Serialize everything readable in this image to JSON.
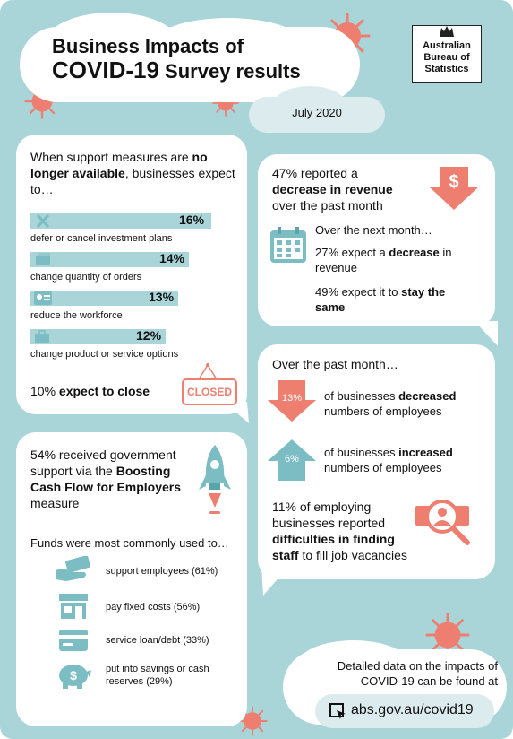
{
  "header": {
    "title_line1": "Business Impacts of",
    "title_line2_strong": "COVID-19",
    "title_line2_rest": "Survey results",
    "date": "July 2020",
    "logo_lines": [
      "Australian",
      "Bureau of",
      "Statistics"
    ]
  },
  "support_panel": {
    "intro_pre": "When support measures are ",
    "intro_bold": "no longer available",
    "intro_post": ", businesses expect to…",
    "items": [
      {
        "percent": "16%",
        "label": "defer or cancel investment plans",
        "value": 16
      },
      {
        "percent": "14%",
        "label": "change quantity of orders",
        "value": 14
      },
      {
        "percent": "13%",
        "label": "reduce the workforce",
        "value": 13
      },
      {
        "percent": "12%",
        "label": "change product or service options",
        "value": 12
      }
    ],
    "close_pre": "10% ",
    "close_bold": "expect to close",
    "closed_sign": "CLOSED"
  },
  "revenue_panel": {
    "line1": "47% reported a",
    "line2_bold": "decrease in revenue",
    "line3": "over the past month",
    "dollar": "$",
    "next_month": "Over the next month…",
    "expect_decrease_pre": "27% expect a ",
    "expect_decrease_bold": "decrease",
    "expect_decrease_post": " in revenue",
    "stay_pre": "49% expect it to ",
    "stay_bold": "stay the same"
  },
  "employees_panel": {
    "heading": "Over the past month…",
    "decreased_pct": "13%",
    "decreased_pre": "of businesses ",
    "decreased_bold": "decreased",
    "decreased_post": "numbers of employees",
    "increased_pct": "6%",
    "increased_pre": "of businesses ",
    "increased_bold": "increased",
    "increased_post": "numbers of employees",
    "staff_pre": "11% of employing businesses reported ",
    "staff_bold": "difficulties in finding staff",
    "staff_post": " to fill job vacancies"
  },
  "cashflow_panel": {
    "line_pre": "54% received government support via the ",
    "line_bold": "Boosting Cash Flow for Employers",
    "line_post": " measure",
    "funds_heading": "Funds were most commonly used to…",
    "uses": [
      {
        "label": "support employees (61%)",
        "icon": "cash-hand-icon"
      },
      {
        "label": "pay fixed costs (56%)",
        "icon": "shopfront-icon"
      },
      {
        "label": "service loan/debt (33%)",
        "icon": "credit-card-icon"
      },
      {
        "label": "put into savings or cash reserves (29%)",
        "icon": "piggy-bank-icon"
      }
    ]
  },
  "footer": {
    "detail_line1": "Detailed data on the impacts of",
    "detail_line2": "COVID-19 can be found at",
    "link": "abs.gov.au/covid19"
  },
  "colors": {
    "background": "#a9d4d8",
    "accent": "#ee7e6f",
    "bars": "#a9d4d8",
    "teal_icons": "#7bbdc3"
  }
}
